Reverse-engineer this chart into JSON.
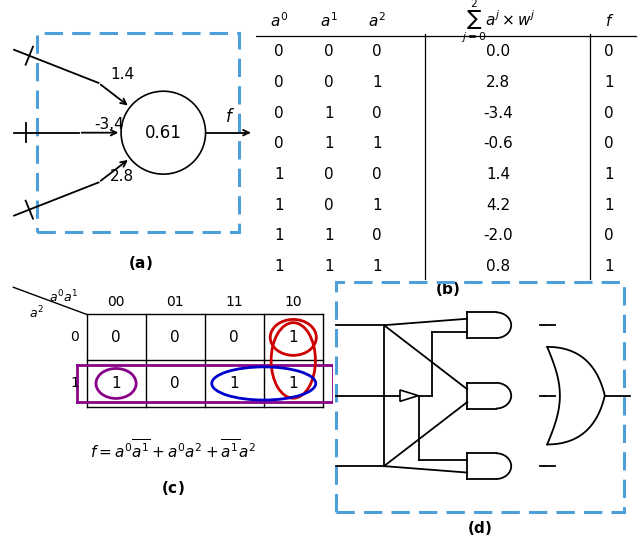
{
  "neuron_threshold": "0.61",
  "weights": [
    "1.4",
    "-3.4",
    "2.8"
  ],
  "table_data": [
    [
      0,
      0,
      0,
      "0.0",
      0
    ],
    [
      0,
      0,
      1,
      "2.8",
      1
    ],
    [
      0,
      1,
      0,
      "-3.4",
      0
    ],
    [
      0,
      1,
      1,
      "-0.6",
      0
    ],
    [
      1,
      0,
      0,
      "1.4",
      1
    ],
    [
      1,
      0,
      1,
      "4.2",
      1
    ],
    [
      1,
      1,
      0,
      "-2.0",
      0
    ],
    [
      1,
      1,
      1,
      "0.8",
      1
    ]
  ],
  "kmap_col_headers": [
    "00",
    "01",
    "11",
    "10"
  ],
  "kmap_row_headers": [
    "0",
    "1"
  ],
  "kmap_values": [
    [
      0,
      0,
      0,
      1
    ],
    [
      1,
      0,
      1,
      1
    ]
  ],
  "dashed_box_color": "#4d9fdc",
  "red_color": "#cc0000",
  "blue_color": "#0000cc",
  "purple_color": "#880088",
  "panel_label_fontsize": 11,
  "data_fontsize": 11,
  "header_fontsize": 11
}
